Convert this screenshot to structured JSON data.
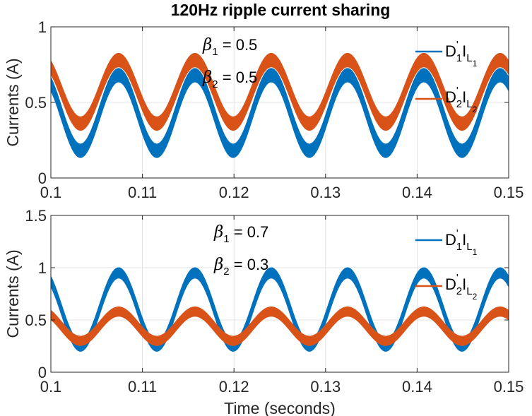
{
  "chart_data": [
    {
      "type": "line",
      "title": "120Hz ripple current sharing",
      "xlabel": "",
      "ylabel": "Currents (A)",
      "xlim": [
        0.1,
        0.15
      ],
      "ylim": [
        0,
        1
      ],
      "xticks": [
        "0.1",
        "0.11",
        "0.12",
        "0.13",
        "0.14",
        "0.15"
      ],
      "yticks": [
        "0",
        "0.5",
        "1"
      ],
      "grid": true,
      "ripple_hz": 120,
      "annotations": {
        "beta1_symbol": "β",
        "beta1_sub": "1",
        "beta1_value": " = 0.5",
        "beta2_symbol": "β",
        "beta2_sub": "2",
        "beta2_value": " = 0.5"
      },
      "series": [
        {
          "name": "D'1IL1",
          "color": "#0072BD",
          "mean": 0.43,
          "amplitude": 0.25,
          "band_width": 0.09,
          "phase_peak_time": 0.1074
        },
        {
          "name": "D'2IL2",
          "color": "#D95319",
          "mean": 0.57,
          "amplitude": 0.21,
          "band_width": 0.09,
          "phase_peak_time": 0.1074
        }
      ],
      "legend": [
        {
          "main": "D",
          "prime": "'",
          "sub1": "1",
          "mid": "I",
          "l": "L",
          "sub2": "1"
        },
        {
          "main": "D",
          "prime": "'",
          "sub1": "2",
          "mid": "I",
          "l": "L",
          "sub2": "2"
        }
      ],
      "legend_position": "top-right"
    },
    {
      "type": "line",
      "title": "",
      "xlabel": "Time (seconds)",
      "ylabel": "Currents (A)",
      "xlim": [
        0.1,
        0.15
      ],
      "ylim": [
        0,
        1.5
      ],
      "xticks": [
        "0.1",
        "0.11",
        "0.12",
        "0.13",
        "0.14",
        "0.15"
      ],
      "yticks": [
        "0",
        "0.5",
        "1",
        "1.5"
      ],
      "grid": true,
      "ripple_hz": 120,
      "annotations": {
        "beta1_symbol": "β",
        "beta1_sub": "1",
        "beta1_value": " = 0.7",
        "beta2_symbol": "β",
        "beta2_sub": "2",
        "beta2_value": " = 0.3"
      },
      "series": [
        {
          "name": "D'1IL1",
          "color": "#0072BD",
          "mean": 0.6,
          "amplitude": 0.35,
          "band_width": 0.1,
          "phase_peak_time": 0.1074
        },
        {
          "name": "D'2IL2",
          "color": "#D95319",
          "mean": 0.44,
          "amplitude": 0.14,
          "band_width": 0.09,
          "phase_peak_time": 0.1074
        }
      ],
      "legend": [
        {
          "main": "D",
          "prime": "'",
          "sub1": "1",
          "mid": "I",
          "l": "L",
          "sub2": "1"
        },
        {
          "main": "D",
          "prime": "'",
          "sub1": "2",
          "mid": "I",
          "l": "L",
          "sub2": "2"
        }
      ],
      "legend_position": "top-right"
    }
  ]
}
